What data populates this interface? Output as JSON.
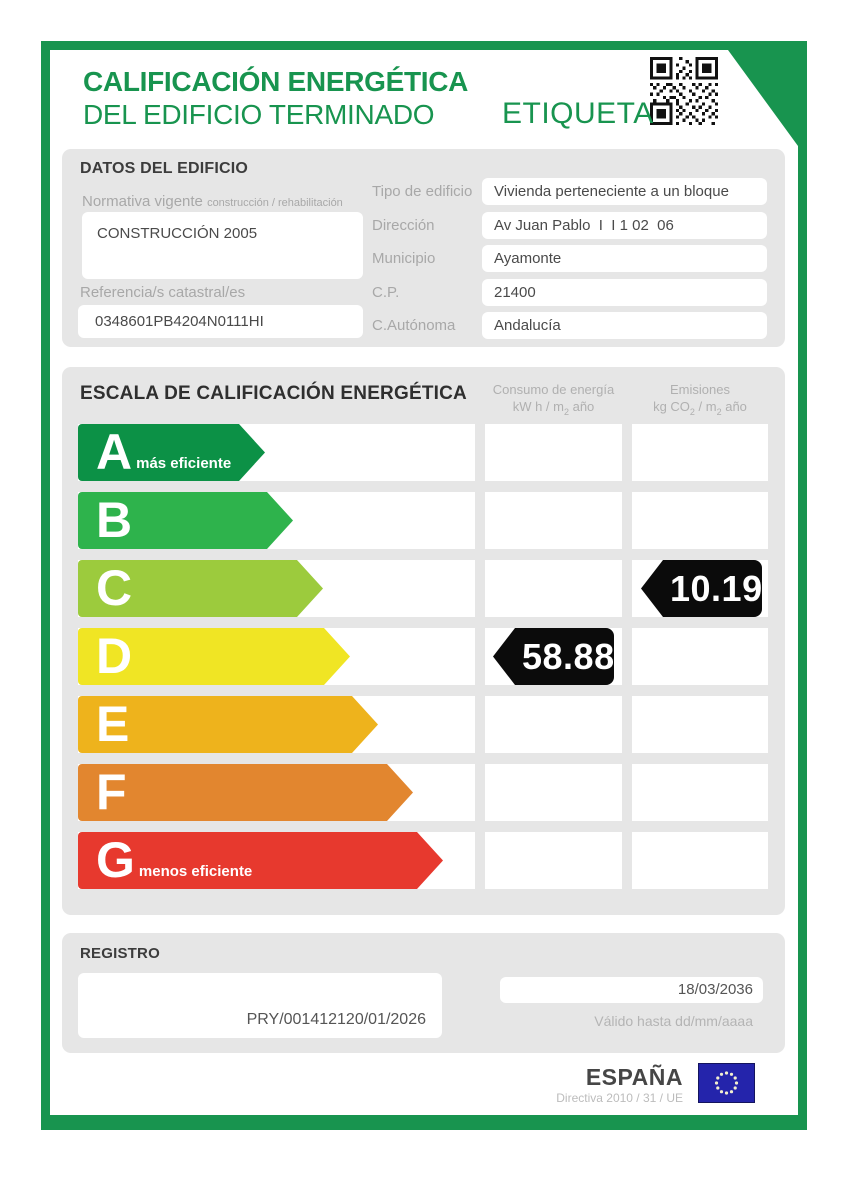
{
  "header": {
    "title_line1": "CALIFICACIÓN ENERGÉTICA",
    "title_line2": "DEL EDIFICIO TERMINADO",
    "etiqueta": "ETIQUETA"
  },
  "colors": {
    "brand_green": "#18944F",
    "panel_gray": "#E6E6E6",
    "badge_black": "#0B0B0B",
    "eu_flag_blue": "#2424AB"
  },
  "building": {
    "section_title": "DATOS DEL EDIFICIO",
    "normativa_label": "Normativa vigente",
    "normativa_sublabel": "construcción / rehabilitación",
    "normativa_value": "CONSTRUCCIÓN 2005",
    "referencia_label": "Referencia/s catastral/es",
    "referencia_value": "0348601PB4204N0111HI",
    "fields": [
      {
        "label": "Tipo de edificio",
        "value": "Vivienda perteneciente a un bloque"
      },
      {
        "label": "Dirección",
        "value": "Av Juan Pablo  I  I 1 02  06"
      },
      {
        "label": "Municipio",
        "value": "Ayamonte"
      },
      {
        "label": "C.P.",
        "value": "21400"
      },
      {
        "label": "C.Autónoma",
        "value": "Andalucía"
      }
    ]
  },
  "scale": {
    "section_title": "ESCALA DE CALIFICACIÓN ENERGÉTICA",
    "consumo_title": "Consumo de energía",
    "consumo_unit": [
      "kW h / m",
      "2",
      " año"
    ],
    "emisiones_title": "Emisiones",
    "emisiones_unit": [
      "kg CO",
      "2",
      " / m",
      "2",
      " año"
    ],
    "ratings": [
      {
        "letter": "A",
        "note": "más eficiente",
        "color": "#0C9146",
        "arrow_width": 187
      },
      {
        "letter": "B",
        "note": "",
        "color": "#2EB34C",
        "arrow_width": 215
      },
      {
        "letter": "C",
        "note": "",
        "color": "#9CCB3D",
        "arrow_width": 245
      },
      {
        "letter": "D",
        "note": "",
        "color": "#F0E524",
        "arrow_width": 272
      },
      {
        "letter": "E",
        "note": "",
        "color": "#EEB31C",
        "arrow_width": 300
      },
      {
        "letter": "F",
        "note": "",
        "color": "#E2862F",
        "arrow_width": 335
      },
      {
        "letter": "G",
        "note": "menos eficiente",
        "color": "#E7392E",
        "arrow_width": 365
      }
    ],
    "value_badges": [
      {
        "column": "consumo",
        "row_letter": "D",
        "value": "58.88"
      },
      {
        "column": "emisiones",
        "row_letter": "C",
        "value": "10.19"
      }
    ]
  },
  "registro": {
    "section_title": "REGISTRO",
    "registry_number": "PRY/001412120/01/2026",
    "valid_until_value": "18/03/2036",
    "valid_until_label": "Válido hasta dd/mm/aaaa"
  },
  "footer": {
    "country": "ESPAÑA",
    "directive": "Directiva 2010 / 31 / UE"
  },
  "icons": {
    "qr_code": "qr-code-icon",
    "eu_flag": "eu-flag-icon"
  }
}
